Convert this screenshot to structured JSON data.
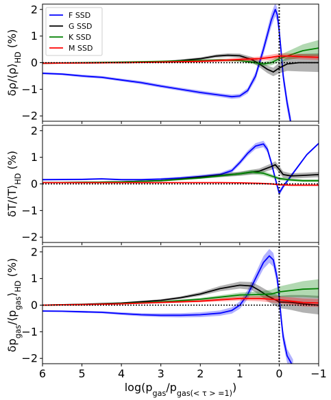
{
  "chart_data": [
    {
      "type": "line",
      "panel": "top",
      "ylabel": "δρ/⟨ρ⟩_HD (%)",
      "ylabel_parts": [
        "δρ/⟨ρ⟩",
        "HD",
        " (%)"
      ],
      "xlim": [
        6,
        -1
      ],
      "ylim": [
        -2.2,
        2.2
      ],
      "yticks": [
        "−2",
        "−1",
        "0",
        "1",
        "2"
      ],
      "ytick_values": [
        -2,
        -1,
        0,
        1,
        2
      ],
      "vline_x": 0,
      "hline_y": 0,
      "legend": {
        "position": "top-left",
        "entries": [
          "F SSD",
          "G SSD",
          "K SSD",
          "M SSD"
        ]
      },
      "series": [
        {
          "name": "F SSD",
          "color": "#0000ff",
          "x": [
            6,
            5.5,
            5,
            4.5,
            4,
            3.5,
            3,
            2.5,
            2,
            1.5,
            1.2,
            1,
            0.8,
            0.6,
            0.4,
            0.2,
            0.1,
            0.05,
            0,
            -0.05,
            -0.1,
            -0.2,
            -0.3
          ],
          "y": [
            -0.4,
            -0.43,
            -0.5,
            -0.55,
            -0.65,
            -0.75,
            -0.88,
            -1.0,
            -1.12,
            -1.22,
            -1.28,
            -1.25,
            -1.05,
            -0.5,
            0.5,
            1.6,
            2.0,
            1.8,
            1.2,
            0.4,
            -0.5,
            -1.5,
            -2.3
          ],
          "band": [
            0.04,
            0.04,
            0.05,
            0.05,
            0.05,
            0.06,
            0.06,
            0.06,
            0.07,
            0.07,
            0.08,
            0.08,
            0.1,
            0.15,
            0.2,
            0.25,
            0.25,
            0.25,
            0.25,
            0.25,
            0.25,
            0.25,
            0.25
          ]
        },
        {
          "name": "G SSD",
          "color": "#000000",
          "x": [
            6,
            5,
            4,
            3,
            2.5,
            2,
            1.6,
            1.3,
            1,
            0.7,
            0.5,
            0.3,
            0.15,
            0,
            -0.2,
            -0.5,
            -1
          ],
          "y": [
            -0.02,
            -0.01,
            0.0,
            0.03,
            0.08,
            0.15,
            0.25,
            0.28,
            0.26,
            0.12,
            -0.05,
            -0.25,
            -0.35,
            -0.2,
            -0.05,
            0.0,
            0.0
          ],
          "band": [
            0.01,
            0.01,
            0.02,
            0.03,
            0.04,
            0.05,
            0.06,
            0.07,
            0.08,
            0.1,
            0.12,
            0.14,
            0.16,
            0.2,
            0.26,
            0.33,
            0.35
          ]
        },
        {
          "name": "K SSD",
          "color": "#008000",
          "x": [
            6,
            5,
            4,
            3,
            2,
            1.5,
            1,
            0.7,
            0.4,
            0.2,
            0,
            -0.3,
            -0.6,
            -1
          ],
          "y": [
            -0.02,
            0.0,
            0.02,
            0.05,
            0.08,
            0.1,
            0.08,
            0.02,
            -0.05,
            0.0,
            0.15,
            0.3,
            0.45,
            0.55
          ],
          "band": [
            0.01,
            0.01,
            0.02,
            0.03,
            0.04,
            0.05,
            0.05,
            0.06,
            0.08,
            0.1,
            0.13,
            0.18,
            0.24,
            0.3
          ]
        },
        {
          "name": "M SSD",
          "color": "#ff0000",
          "x": [
            6,
            5,
            4,
            3,
            2,
            1.5,
            1,
            0.5,
            0.2,
            0,
            -0.3,
            -0.6,
            -1
          ],
          "y": [
            -0.02,
            -0.01,
            0.0,
            0.02,
            0.05,
            0.08,
            0.12,
            0.15,
            0.2,
            0.25,
            0.25,
            0.22,
            0.2
          ],
          "band": [
            0.01,
            0.01,
            0.02,
            0.03,
            0.04,
            0.05,
            0.06,
            0.08,
            0.1,
            0.1,
            0.1,
            0.1,
            0.1
          ]
        }
      ]
    },
    {
      "type": "line",
      "panel": "middle",
      "ylabel": "δT/⟨T⟩_HD (%)",
      "ylabel_parts": [
        "δT/⟨T⟩",
        "HD",
        " (%)"
      ],
      "xlim": [
        6,
        -1
      ],
      "ylim": [
        -2.2,
        2.2
      ],
      "yticks": [
        "−2",
        "−1",
        "0",
        "1",
        "2"
      ],
      "ytick_values": [
        -2,
        -1,
        0,
        1,
        2
      ],
      "vline_x": 0,
      "hline_y": 0,
      "series": [
        {
          "name": "F SSD",
          "color": "#0000ff",
          "x": [
            6,
            5,
            4.5,
            4,
            3.5,
            3,
            2.5,
            2,
            1.5,
            1.2,
            1,
            0.8,
            0.6,
            0.4,
            0.3,
            0.2,
            0.1,
            0,
            -0.1,
            -0.3,
            -0.5,
            -0.7,
            -1
          ],
          "y": [
            0.16,
            0.17,
            0.19,
            0.16,
            0.16,
            0.18,
            0.22,
            0.28,
            0.35,
            0.5,
            0.8,
            1.15,
            1.42,
            1.5,
            1.3,
            0.8,
            0.2,
            -0.35,
            -0.1,
            0.3,
            0.7,
            1.1,
            1.52
          ],
          "band": [
            0.03,
            0.03,
            0.03,
            0.03,
            0.03,
            0.04,
            0.05,
            0.06,
            0.07,
            0.08,
            0.09,
            0.1,
            0.11,
            0.12,
            0.12,
            0.11,
            0.1,
            0.1,
            0.08,
            0.06,
            0.05,
            0.04,
            0.04
          ]
        },
        {
          "name": "G SSD",
          "color": "#000000",
          "x": [
            6,
            5,
            4,
            3,
            2.5,
            2,
            1.5,
            1,
            0.5,
            0.2,
            0.1,
            0,
            -0.1,
            -0.3,
            -0.6,
            -1
          ],
          "y": [
            0.05,
            0.06,
            0.08,
            0.12,
            0.18,
            0.25,
            0.32,
            0.38,
            0.48,
            0.65,
            0.72,
            0.55,
            0.35,
            0.3,
            0.32,
            0.35
          ],
          "band": [
            0.01,
            0.01,
            0.02,
            0.03,
            0.04,
            0.05,
            0.07,
            0.08,
            0.1,
            0.12,
            0.13,
            0.13,
            0.12,
            0.1,
            0.1,
            0.1
          ]
        },
        {
          "name": "K SSD",
          "color": "#008000",
          "x": [
            6,
            5,
            4,
            3,
            2,
            1.5,
            1,
            0.7,
            0.4,
            0.2,
            0,
            -0.3,
            -0.6,
            -1
          ],
          "y": [
            0.05,
            0.06,
            0.08,
            0.12,
            0.22,
            0.3,
            0.38,
            0.45,
            0.4,
            0.3,
            0.2,
            0.15,
            0.12,
            0.12
          ],
          "band": [
            0.01,
            0.01,
            0.02,
            0.02,
            0.03,
            0.04,
            0.06,
            0.08,
            0.08,
            0.07,
            0.06,
            0.05,
            0.05,
            0.05
          ]
        },
        {
          "name": "M SSD",
          "color": "#ff0000",
          "x": [
            6,
            5,
            4,
            3,
            2,
            1.5,
            1,
            0.5,
            0.2,
            0,
            -0.3,
            -0.6,
            -1
          ],
          "y": [
            0.05,
            0.05,
            0.05,
            0.05,
            0.05,
            0.05,
            0.04,
            0.02,
            0.0,
            -0.03,
            -0.05,
            -0.05,
            -0.05
          ],
          "band": [
            0.01,
            0.01,
            0.01,
            0.01,
            0.01,
            0.02,
            0.02,
            0.03,
            0.03,
            0.03,
            0.03,
            0.03,
            0.03
          ]
        }
      ]
    },
    {
      "type": "line",
      "panel": "bottom",
      "ylabel": "δp_gas/⟨p_gas⟩_HD (%)",
      "ylabel_parts": [
        "δp",
        "gas",
        "/⟨p",
        "gas",
        "⟩",
        "HD",
        " (%)"
      ],
      "xlabel": "log(p_gas/p_gas(<τ> =1))",
      "xlabel_parts": [
        "log(p",
        "gas",
        "/p",
        "gas(< τ > =1)",
        ")"
      ],
      "xlim": [
        6,
        -1
      ],
      "ylim": [
        -2.2,
        2.2
      ],
      "xticks": [
        "6",
        "5",
        "4",
        "3",
        "2",
        "1",
        "0",
        "−1"
      ],
      "xtick_values": [
        6,
        5,
        4,
        3,
        2,
        1,
        0,
        -1
      ],
      "yticks": [
        "−2",
        "−1",
        "0",
        "1",
        "2"
      ],
      "ytick_values": [
        -2,
        -1,
        0,
        1,
        2
      ],
      "vline_x": 0,
      "hline_y": 0,
      "series": [
        {
          "name": "F SSD",
          "color": "#0000ff",
          "x": [
            6,
            5.5,
            5,
            4.5,
            4,
            3.5,
            3,
            2.5,
            2,
            1.5,
            1.2,
            1,
            0.8,
            0.6,
            0.4,
            0.25,
            0.15,
            0.05,
            0,
            -0.05,
            -0.1,
            -0.2,
            -0.35
          ],
          "y": [
            -0.22,
            -0.23,
            -0.25,
            -0.27,
            -0.32,
            -0.36,
            -0.38,
            -0.38,
            -0.36,
            -0.3,
            -0.2,
            0.0,
            0.4,
            1.0,
            1.6,
            1.85,
            1.7,
            1.0,
            0.3,
            -0.5,
            -1.2,
            -1.9,
            -2.3
          ],
          "band": [
            0.03,
            0.03,
            0.04,
            0.04,
            0.05,
            0.06,
            0.07,
            0.08,
            0.09,
            0.1,
            0.12,
            0.14,
            0.17,
            0.2,
            0.24,
            0.26,
            0.26,
            0.26,
            0.26,
            0.26,
            0.26,
            0.26,
            0.26
          ]
        },
        {
          "name": "G SSD",
          "color": "#000000",
          "x": [
            6,
            5,
            4,
            3,
            2.5,
            2,
            1.5,
            1,
            0.7,
            0.5,
            0.3,
            0.1,
            0,
            -0.3,
            -0.6,
            -1
          ],
          "y": [
            0.0,
            0.03,
            0.08,
            0.18,
            0.28,
            0.42,
            0.62,
            0.75,
            0.72,
            0.55,
            0.35,
            0.2,
            0.12,
            0.1,
            0.05,
            0.0
          ],
          "band": [
            0.01,
            0.01,
            0.02,
            0.04,
            0.05,
            0.07,
            0.1,
            0.13,
            0.15,
            0.17,
            0.2,
            0.22,
            0.23,
            0.28,
            0.33,
            0.35
          ]
        },
        {
          "name": "K SSD",
          "color": "#008000",
          "x": [
            6,
            5,
            4,
            3,
            2,
            1.5,
            1,
            0.5,
            0.2,
            0,
            -0.3,
            -0.6,
            -1
          ],
          "y": [
            0.0,
            0.02,
            0.06,
            0.12,
            0.22,
            0.3,
            0.38,
            0.4,
            0.42,
            0.5,
            0.55,
            0.6,
            0.62
          ],
          "band": [
            0.01,
            0.01,
            0.02,
            0.03,
            0.05,
            0.07,
            0.09,
            0.12,
            0.16,
            0.2,
            0.25,
            0.3,
            0.35
          ]
        },
        {
          "name": "M SSD",
          "color": "#ff0000",
          "x": [
            6,
            5,
            4,
            3,
            2,
            1.5,
            1,
            0.5,
            0.2,
            0,
            -0.3,
            -0.6,
            -1
          ],
          "y": [
            0.0,
            0.02,
            0.05,
            0.1,
            0.15,
            0.2,
            0.25,
            0.25,
            0.22,
            0.2,
            0.15,
            0.1,
            0.08
          ],
          "band": [
            0.01,
            0.01,
            0.02,
            0.03,
            0.04,
            0.06,
            0.08,
            0.1,
            0.12,
            0.13,
            0.14,
            0.15,
            0.15
          ]
        }
      ]
    }
  ]
}
